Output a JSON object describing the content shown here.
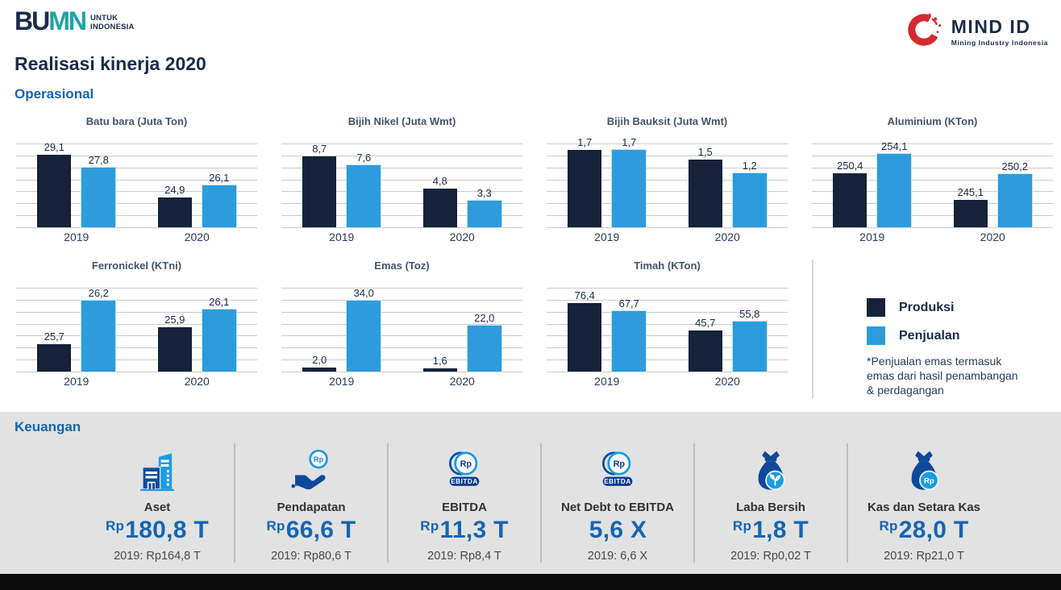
{
  "header": {
    "bumn_logo": {
      "text_part1": "BU",
      "text_part2": "MN",
      "tagline_line1": "UNTUK",
      "tagline_line2": "INDONESIA"
    },
    "mindid_logo": {
      "name": "MIND ID",
      "tagline": "Mining Industry Indonesia",
      "ring_color": "#D7282F"
    },
    "title": "Realisasi kinerja 2020"
  },
  "operasional": {
    "section_title": "Operasional",
    "legend": {
      "produksi_label": "Produksi",
      "penjualan_label": "Penjualan",
      "produksi_color": "#15223A",
      "penjualan_color": "#2E9BDC",
      "note": "*Penjualan emas termasuk emas dari hasil penambangan & perdagangan"
    }
  },
  "chart_data": [
    {
      "id": "batu-bara",
      "type": "bar",
      "title": "Batu bara (Juta Ton)",
      "categories": [
        "2019",
        "2020"
      ],
      "series": [
        {
          "name": "Produksi",
          "values": [
            29.1,
            24.9
          ],
          "labels": [
            "29,1",
            "24,9"
          ]
        },
        {
          "name": "Penjualan",
          "values": [
            27.8,
            26.1
          ],
          "labels": [
            "27,8",
            "26,1"
          ]
        }
      ],
      "ylim": [
        22,
        30.2
      ],
      "grid": true,
      "gridline_count": 8,
      "legend_position": "right-panel"
    },
    {
      "id": "bijih-nikel",
      "type": "bar",
      "title": "Bijih Nikel (Juta Wmt)",
      "categories": [
        "2019",
        "2020"
      ],
      "series": [
        {
          "name": "Produksi",
          "values": [
            8.7,
            4.8
          ],
          "labels": [
            "8,7",
            "4,8"
          ]
        },
        {
          "name": "Penjualan",
          "values": [
            7.6,
            3.3
          ],
          "labels": [
            "7,6",
            "3,3"
          ]
        }
      ],
      "ylim": [
        0,
        10.3
      ],
      "grid": true,
      "gridline_count": 8
    },
    {
      "id": "bijih-bauksit",
      "type": "bar",
      "title": "Bijih Bauksit (Juta Wmt)",
      "categories": [
        "2019",
        "2020"
      ],
      "series": [
        {
          "name": "Produksi",
          "values": [
            1.7,
            1.5
          ],
          "labels": [
            "1,7",
            "1,5"
          ]
        },
        {
          "name": "Penjualan",
          "values": [
            1.7,
            1.2
          ],
          "labels": [
            "1,7",
            "1,2"
          ]
        }
      ],
      "ylim": [
        0,
        1.85
      ],
      "grid": true,
      "gridline_count": 8
    },
    {
      "id": "aluminium",
      "type": "bar",
      "title": "Aluminium (KTon)",
      "categories": [
        "2019",
        "2020"
      ],
      "series": [
        {
          "name": "Produksi",
          "values": [
            250.4,
            245.1
          ],
          "labels": [
            "250,4",
            "245,1"
          ]
        },
        {
          "name": "Penjualan",
          "values": [
            254.1,
            250.2
          ],
          "labels": [
            "254,1",
            "250,2"
          ]
        }
      ],
      "ylim": [
        239.8,
        256.2
      ],
      "grid": true,
      "gridline_count": 8
    },
    {
      "id": "ferronickel",
      "type": "bar",
      "title": "Ferronickel (KTni)",
      "categories": [
        "2019",
        "2020"
      ],
      "series": [
        {
          "name": "Produksi",
          "values": [
            25.7,
            25.9
          ],
          "labels": [
            "25,7",
            "25,9"
          ]
        },
        {
          "name": "Penjualan",
          "values": [
            26.2,
            26.1
          ],
          "labels": [
            "26,2",
            "26,1"
          ]
        }
      ],
      "ylim": [
        25.39,
        26.35
      ],
      "grid": true,
      "gridline_count": 8
    },
    {
      "id": "emas",
      "type": "bar",
      "title": "Emas (Toz)",
      "categories": [
        "2019",
        "2020"
      ],
      "series": [
        {
          "name": "Produksi",
          "values": [
            2.0,
            1.6
          ],
          "labels": [
            "2,0",
            "1,6"
          ]
        },
        {
          "name": "Penjualan",
          "values": [
            34.0,
            22.0
          ],
          "labels": [
            "34,0",
            "22,0"
          ]
        }
      ],
      "ylim": [
        0,
        40
      ],
      "grid": true,
      "gridline_count": 8
    },
    {
      "id": "timah",
      "type": "bar",
      "title": "Timah (KTon)",
      "categories": [
        "2019",
        "2020"
      ],
      "series": [
        {
          "name": "Produksi",
          "values": [
            76.4,
            45.7
          ],
          "labels": [
            "76,4",
            "45,7"
          ]
        },
        {
          "name": "Penjualan",
          "values": [
            67.7,
            55.8
          ],
          "labels": [
            "67,7",
            "55,8"
          ]
        }
      ],
      "ylim": [
        0,
        94
      ],
      "grid": true,
      "gridline_count": 8
    }
  ],
  "keuangan": {
    "section_title": "Keuangan",
    "items": [
      {
        "id": "aset",
        "icon": "building",
        "label": "Aset",
        "prefix": "Rp",
        "value": "180,8 T",
        "previous": "2019: Rp164,8 T"
      },
      {
        "id": "pendapatan",
        "icon": "hand-coin",
        "label": "Pendapatan",
        "prefix": "Rp",
        "value": "66,6 T",
        "previous": "2019: Rp80,6 T"
      },
      {
        "id": "ebitda",
        "icon": "ebitda-coin",
        "label": "EBITDA",
        "prefix": "Rp",
        "value": "11,3 T",
        "previous": "2019: Rp8,4 T"
      },
      {
        "id": "net-debt-to-ebitda",
        "icon": "ebitda-coin",
        "label": "Net Debt to EBITDA",
        "prefix": "",
        "value": "5,6 X",
        "previous": "2019: 6,6 X"
      },
      {
        "id": "laba-bersih",
        "icon": "money-bag-plant",
        "label": "Laba Bersih",
        "prefix": "Rp",
        "value": "1,8 T",
        "previous": "2019: Rp0,02 T"
      },
      {
        "id": "kas-dan-setara-kas",
        "icon": "money-bag-rp",
        "label": "Kas dan Setara Kas",
        "prefix": "Rp",
        "value": "28,0 T",
        "previous": "2019: Rp21,0 T"
      }
    ]
  },
  "colors": {
    "accent_blue": "#1565B3",
    "section_title_blue": "#1464B4",
    "dark_navy": "#1B2B4B",
    "bar_produksi": "#15223A",
    "bar_penjualan": "#2E9BDC",
    "bumn_teal": "#1FA3A3",
    "mindid_red": "#D7282F",
    "keuangan_bg": "#E2E2E2",
    "gridline": "#CBCBCB",
    "bottom_bar": "#0B0B0B"
  }
}
